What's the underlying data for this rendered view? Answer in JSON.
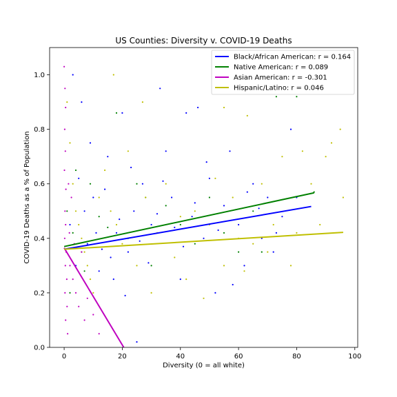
{
  "chart_data": {
    "type": "scatter",
    "title": "US Counties: Diversity v. COVID-19 Deaths",
    "xlabel": "Diversity (0 = all white)",
    "ylabel": "COVID-19 Deaths as a % of Population",
    "xlim": [
      -5,
      101
    ],
    "ylim": [
      0,
      1.1
    ],
    "xticks": [
      0,
      20,
      40,
      60,
      80,
      100
    ],
    "xtick_labels": [
      "0",
      "20",
      "40",
      "60",
      "80",
      "100"
    ],
    "yticks": [
      0,
      0.2,
      0.4,
      0.6,
      0.8,
      1.0
    ],
    "ytick_labels": [
      "0.0",
      "0.2",
      "0.4",
      "0.6",
      "0.8",
      "1.0"
    ],
    "grid": false,
    "legend_position": "top-right",
    "series": [
      {
        "name": "Black/African American: r = 0.164",
        "color": "#0000ff",
        "fit_line": {
          "x": [
            0,
            85
          ],
          "y": [
            0.36,
            0.517
          ]
        },
        "points": [
          [
            2,
            0.45
          ],
          [
            5,
            0.62
          ],
          [
            8,
            0.38
          ],
          [
            10,
            0.55
          ],
          [
            12,
            0.28
          ],
          [
            15,
            0.7
          ],
          [
            18,
            0.42
          ],
          [
            20,
            0.86
          ],
          [
            22,
            0.35
          ],
          [
            24,
            0.5
          ],
          [
            25,
            0.02
          ],
          [
            27,
            0.6
          ],
          [
            30,
            0.45
          ],
          [
            33,
            0.95
          ],
          [
            35,
            0.72
          ],
          [
            37,
            0.55
          ],
          [
            40,
            0.25
          ],
          [
            42,
            0.86
          ],
          [
            44,
            0.48
          ],
          [
            46,
            0.88
          ],
          [
            48,
            0.4
          ],
          [
            50,
            0.62
          ],
          [
            52,
            0.2
          ],
          [
            55,
            0.52
          ],
          [
            57,
            0.72
          ],
          [
            60,
            0.45
          ],
          [
            62,
            0.3
          ],
          [
            65,
            0.6
          ],
          [
            68,
            0.4
          ],
          [
            70,
            0.55
          ],
          [
            72,
            0.35
          ],
          [
            75,
            0.48
          ],
          [
            78,
            0.8
          ],
          [
            80,
            0.55
          ],
          [
            3,
            1.0
          ],
          [
            6,
            0.9
          ],
          [
            9,
            0.75
          ],
          [
            14,
            0.58
          ],
          [
            16,
            0.33
          ],
          [
            19,
            0.47
          ],
          [
            23,
            0.66
          ],
          [
            26,
            0.39
          ],
          [
            29,
            0.31
          ],
          [
            32,
            0.49
          ],
          [
            34,
            0.61
          ],
          [
            38,
            0.44
          ],
          [
            41,
            0.37
          ],
          [
            45,
            0.53
          ],
          [
            49,
            0.68
          ],
          [
            53,
            0.43
          ],
          [
            58,
            0.23
          ],
          [
            63,
            0.57
          ],
          [
            67,
            0.51
          ],
          [
            73,
            0.42
          ],
          [
            11,
            0.42
          ],
          [
            13,
            0.36
          ],
          [
            7,
            0.5
          ],
          [
            4,
            0.3
          ],
          [
            17,
            0.25
          ],
          [
            21,
            0.19
          ]
        ]
      },
      {
        "name": "Native American: r = 0.089",
        "color": "#008000",
        "fit_line": {
          "x": [
            0,
            86
          ],
          "y": [
            0.37,
            0.567
          ]
        },
        "points": [
          [
            1,
            0.5
          ],
          [
            3,
            0.42
          ],
          [
            6,
            0.35
          ],
          [
            9,
            0.6
          ],
          [
            12,
            0.48
          ],
          [
            18,
            0.86
          ],
          [
            25,
            0.6
          ],
          [
            30,
            0.3
          ],
          [
            35,
            0.52
          ],
          [
            40,
            0.45
          ],
          [
            45,
            0.38
          ],
          [
            50,
            0.55
          ],
          [
            55,
            0.42
          ],
          [
            60,
            0.35
          ],
          [
            65,
            0.5
          ],
          [
            68,
            0.35
          ],
          [
            73,
            0.92
          ],
          [
            80,
            0.92
          ],
          [
            86,
            0.57
          ],
          [
            15,
            0.44
          ],
          [
            22,
            0.4
          ],
          [
            28,
            0.55
          ],
          [
            2,
            0.2
          ],
          [
            4,
            0.65
          ],
          [
            7,
            0.28
          ]
        ]
      },
      {
        "name": "Asian American: r = -0.301",
        "color": "#bf00bf",
        "fit_line": {
          "x": [
            0,
            20.5
          ],
          "y": [
            0.365,
            0.0
          ]
        },
        "points": [
          [
            0,
            1.03
          ],
          [
            0.3,
            0.95
          ],
          [
            0.5,
            0.88
          ],
          [
            0.2,
            0.8
          ],
          [
            0.4,
            0.72
          ],
          [
            0.1,
            0.65
          ],
          [
            0.6,
            0.58
          ],
          [
            0.3,
            0.5
          ],
          [
            0.5,
            0.45
          ],
          [
            0.2,
            0.4
          ],
          [
            0.7,
            0.35
          ],
          [
            0.4,
            0.3
          ],
          [
            0.9,
            0.25
          ],
          [
            0.3,
            0.2
          ],
          [
            1,
            0.15
          ],
          [
            0.5,
            0.1
          ],
          [
            1.2,
            0.05
          ],
          [
            2,
            0.3
          ],
          [
            3,
            0.25
          ],
          [
            4,
            0.2
          ],
          [
            5,
            0.15
          ],
          [
            6,
            0.35
          ],
          [
            8,
            0.18
          ],
          [
            10,
            0.12
          ],
          [
            12,
            0.05
          ],
          [
            2.5,
            0.55
          ],
          [
            1.5,
            0.6
          ],
          [
            1.8,
            0.42
          ],
          [
            3.5,
            0.38
          ],
          [
            7,
            0.1
          ]
        ]
      },
      {
        "name": "Hispanic/Latino: r = 0.046",
        "color": "#bfbf00",
        "fit_line": {
          "x": [
            0,
            96
          ],
          "y": [
            0.36,
            0.422
          ]
        },
        "points": [
          [
            1,
            0.9
          ],
          [
            2,
            0.75
          ],
          [
            3,
            0.6
          ],
          [
            4,
            0.5
          ],
          [
            5,
            0.45
          ],
          [
            6,
            0.4
          ],
          [
            7,
            0.35
          ],
          [
            8,
            0.3
          ],
          [
            9,
            0.25
          ],
          [
            10,
            0.2
          ],
          [
            12,
            0.55
          ],
          [
            14,
            0.65
          ],
          [
            16,
            0.5
          ],
          [
            18,
            0.45
          ],
          [
            20,
            0.38
          ],
          [
            22,
            0.72
          ],
          [
            25,
            0.3
          ],
          [
            28,
            0.55
          ],
          [
            30,
            0.2
          ],
          [
            32,
            0.42
          ],
          [
            35,
            0.6
          ],
          [
            38,
            0.33
          ],
          [
            40,
            0.48
          ],
          [
            42,
            0.25
          ],
          [
            45,
            0.5
          ],
          [
            48,
            0.18
          ],
          [
            50,
            0.45
          ],
          [
            52,
            0.62
          ],
          [
            55,
            0.3
          ],
          [
            58,
            0.55
          ],
          [
            60,
            0.4
          ],
          [
            62,
            0.28
          ],
          [
            65,
            0.38
          ],
          [
            68,
            0.6
          ],
          [
            70,
            0.35
          ],
          [
            72,
            0.45
          ],
          [
            75,
            0.7
          ],
          [
            78,
            0.3
          ],
          [
            80,
            0.42
          ],
          [
            82,
            0.72
          ],
          [
            85,
            0.6
          ],
          [
            88,
            0.45
          ],
          [
            90,
            0.7
          ],
          [
            92,
            0.75
          ],
          [
            95,
            0.8
          ],
          [
            96,
            0.55
          ],
          [
            17,
            1.0
          ],
          [
            27,
            0.9
          ],
          [
            55,
            0.88
          ],
          [
            63,
            0.85
          ]
        ]
      }
    ]
  }
}
